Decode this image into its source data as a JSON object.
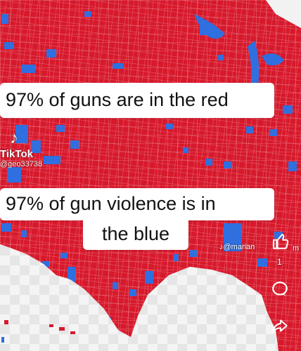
{
  "captions": {
    "top": "97% of guns are in the red",
    "bottom_line1": "97% of gun violence is in",
    "bottom_line2": "the blue"
  },
  "watermark": {
    "brand": "TikTok",
    "handle": "@geo33738",
    "side_handle": "@marian",
    "edge_text": "m"
  },
  "actions": {
    "like_count": "1"
  },
  "colors": {
    "red": "#d7192c",
    "blue": "#2f6fe0",
    "border": "#f0a0a8"
  },
  "icons": {
    "music": "tiktok-note-icon",
    "like": "thumbs-up-icon",
    "comment": "comment-bubble-icon",
    "share": "share-arrow-icon"
  }
}
